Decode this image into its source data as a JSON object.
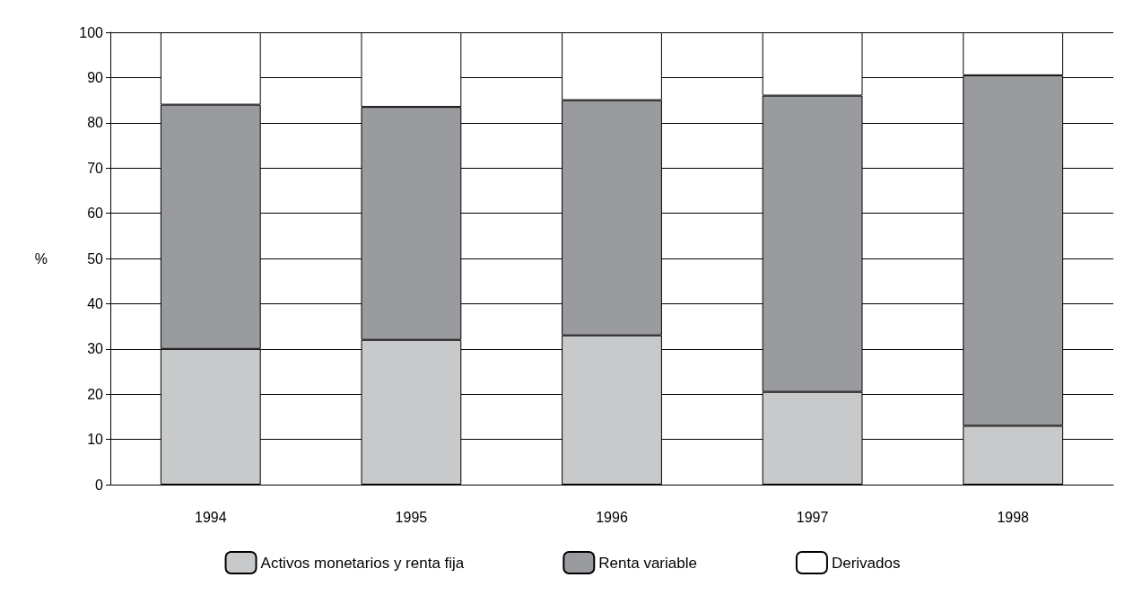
{
  "chart_data": {
    "type": "bar",
    "stacked": true,
    "ylabel": "%",
    "categories": [
      "1994",
      "1995",
      "1996",
      "1997",
      "1998"
    ],
    "series": [
      {
        "name": "Activos monetarios y renta fija",
        "color": "#c8c9cb",
        "values": [
          30,
          32,
          33,
          20.5,
          13
        ]
      },
      {
        "name": "Renta variable",
        "color": "#9a9b9e",
        "values": [
          54,
          51.5,
          52,
          65.5,
          77.5
        ]
      },
      {
        "name": "Derivados",
        "color": "#ffffff",
        "values": [
          16,
          16.5,
          15,
          14,
          9.5
        ]
      }
    ],
    "ylim": [
      0,
      100
    ],
    "yticks": [
      0,
      10,
      20,
      30,
      40,
      50,
      60,
      70,
      80,
      90,
      100
    ],
    "grid": "y",
    "legend": "bottom"
  }
}
